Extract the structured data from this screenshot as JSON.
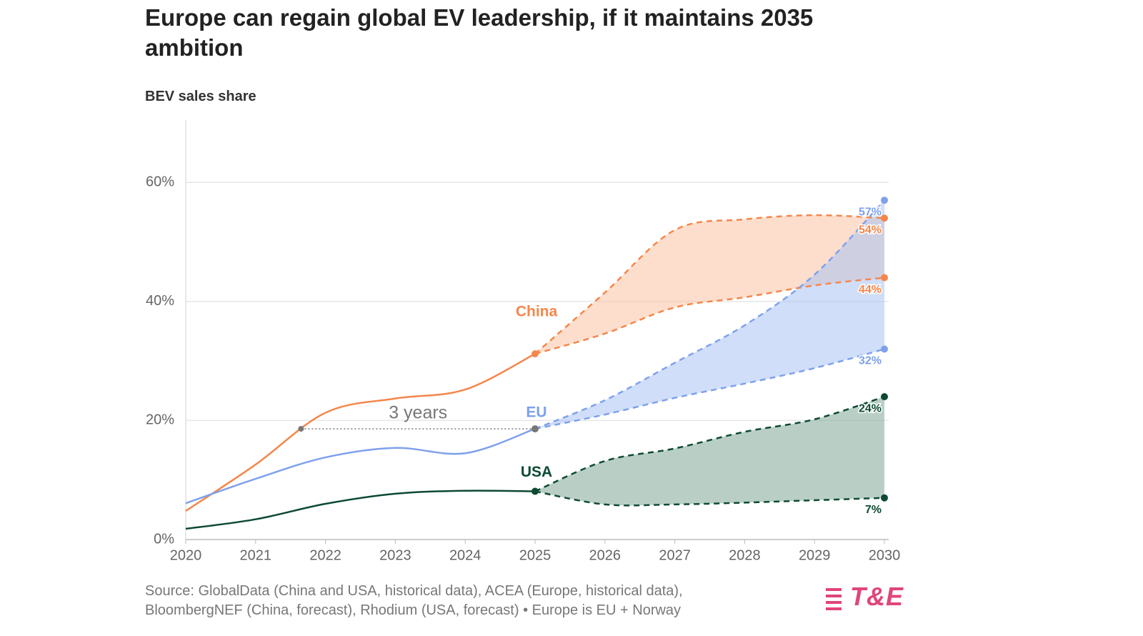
{
  "chart_data": {
    "type": "line",
    "title": "Europe can regain global EV leadership, if it maintains 2035 ambition",
    "subtitle": "BEV sales share",
    "source": "Source: GlobalData (China and USA, historical data), ACEA (Europe, historical data), BloombergNEF (China, forecast), Rhodium (USA, forecast) • Europe is EU + Norway",
    "logo": "T&E",
    "x": [
      2020,
      2021,
      2022,
      2023,
      2024,
      2025,
      2026,
      2027,
      2028,
      2029,
      2030
    ],
    "xlim": [
      2020,
      2030
    ],
    "xticks": [
      2020,
      2021,
      2022,
      2023,
      2024,
      2025,
      2026,
      2027,
      2028,
      2029,
      2030
    ],
    "ylim": [
      0,
      70
    ],
    "yticks": [
      {
        "value": 0,
        "label": "0%"
      },
      {
        "value": 20,
        "label": "20%"
      },
      {
        "value": 40,
        "label": "40%"
      },
      {
        "value": 60,
        "label": "60%"
      }
    ],
    "grid": true,
    "series": [
      {
        "name": "China",
        "color": "#f4874b",
        "fill": "#fbc3a4",
        "values": [
          4.8,
          12.6,
          21.3,
          23.7,
          25.2,
          31.2,
          null,
          null,
          null,
          null,
          null
        ],
        "high": [
          null,
          null,
          null,
          null,
          null,
          31.2,
          41.5,
          52,
          53.8,
          54.5,
          54
        ],
        "low": [
          null,
          null,
          null,
          null,
          null,
          31.2,
          34.6,
          39,
          40.7,
          42.7,
          44
        ],
        "high_label": "54%",
        "low_label": "44%"
      },
      {
        "name": "EU",
        "color": "#7ea1ec",
        "fill": "#aac3f4",
        "values": [
          6.1,
          10.2,
          13.8,
          15.4,
          14.5,
          18.6,
          null,
          null,
          null,
          null,
          null
        ],
        "high": [
          null,
          null,
          null,
          null,
          null,
          18.6,
          23.4,
          29.7,
          36,
          44.5,
          57
        ],
        "low": [
          null,
          null,
          null,
          null,
          null,
          18.6,
          21,
          23.8,
          26.2,
          28.8,
          32
        ],
        "high_label": "57%",
        "low_label": "32%"
      },
      {
        "name": "USA",
        "color": "#0d4a32",
        "fill": "#7fa898",
        "values": [
          1.8,
          3.4,
          6,
          7.7,
          8.2,
          8.1,
          null,
          null,
          null,
          null,
          null
        ],
        "high": [
          null,
          null,
          null,
          null,
          null,
          8.1,
          13.2,
          15.3,
          18.1,
          20.2,
          24
        ],
        "low": [
          null,
          null,
          null,
          null,
          null,
          8.1,
          5.9,
          5.9,
          6.2,
          6.6,
          7
        ],
        "high_label": "24%",
        "low_label": "7%"
      }
    ],
    "gap": {
      "label": "3 years",
      "from": 2021.65,
      "to": 2025,
      "level": 18.6
    }
  }
}
